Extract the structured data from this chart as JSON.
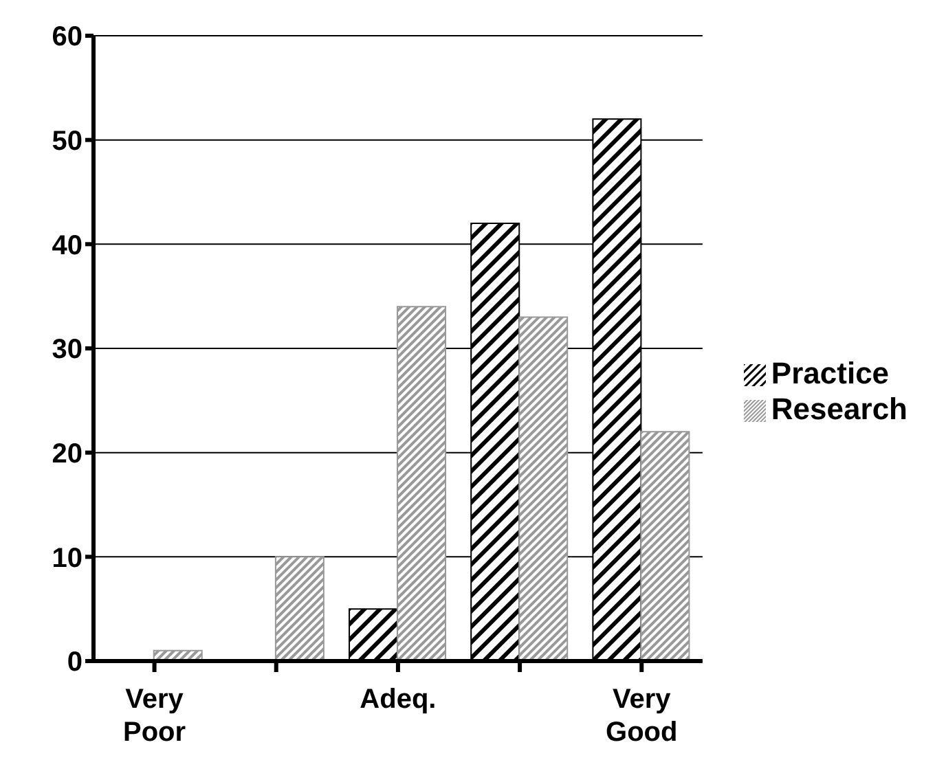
{
  "chart_data": {
    "type": "bar",
    "categories": [
      "Very Poor",
      null,
      "Adeq.",
      null,
      "Very Good"
    ],
    "series": [
      {
        "name": "Practice",
        "color": "#000000",
        "values": [
          0,
          0,
          5,
          42,
          52
        ]
      },
      {
        "name": "Research",
        "color": "#999999",
        "values": [
          1,
          10,
          34,
          33,
          22
        ]
      }
    ],
    "ylim": [
      0,
      60
    ],
    "yticks": [
      0,
      10,
      20,
      30,
      40,
      50,
      60
    ],
    "grid": "y",
    "legend": "right"
  }
}
